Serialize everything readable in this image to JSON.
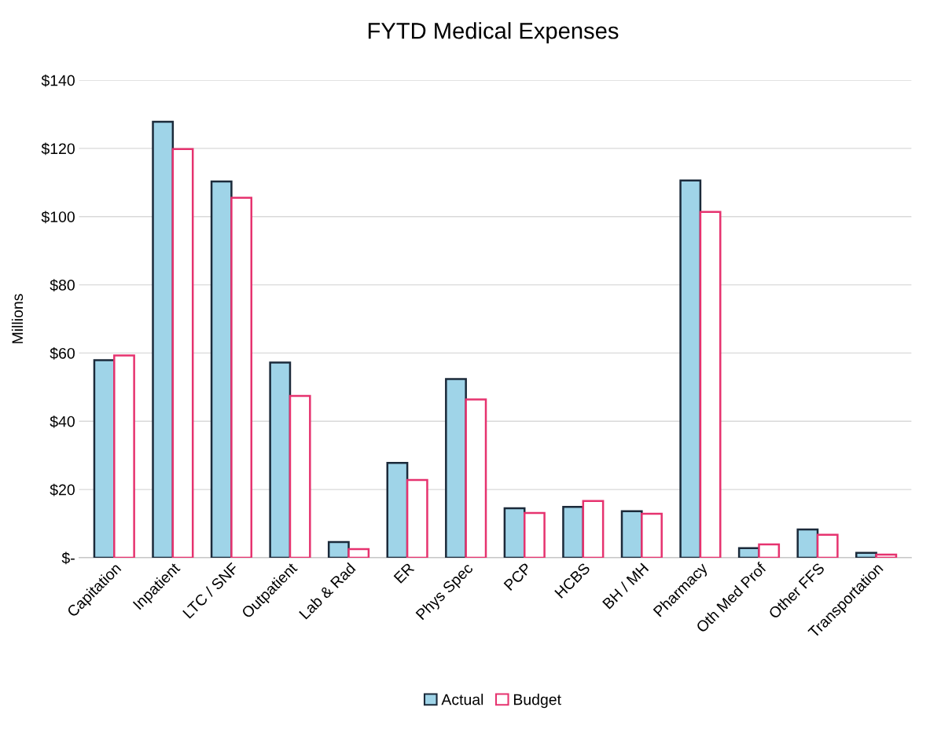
{
  "chart_data": {
    "type": "bar",
    "title": "FYTD Medical Expenses",
    "ylabel": "Millions",
    "categories": [
      "Capitation",
      "Inpatient",
      "LTC / SNF",
      "Outpatient",
      "Lab & Rad",
      "ER",
      "Phys Spec",
      "PCP",
      "HCBS",
      "BH / MH",
      "Pharmacy",
      "Oth Med Prof",
      "Other FFS",
      "Transportation"
    ],
    "series": [
      {
        "name": "Actual",
        "color": "#9fd4e8",
        "values": [
          57.9,
          127.8,
          110.3,
          57.2,
          4.6,
          27.8,
          52.4,
          14.5,
          14.9,
          13.6,
          110.6,
          2.8,
          8.3,
          1.4
        ]
      },
      {
        "name": "Budget",
        "color": "#e6336f",
        "values": [
          59.3,
          119.8,
          105.5,
          47.4,
          2.5,
          22.8,
          46.4,
          13.1,
          16.6,
          12.9,
          101.4,
          3.9,
          6.7,
          0.9
        ]
      }
    ],
    "ylim": [
      0,
      140
    ],
    "yticks": [
      {
        "value": 0,
        "label": "$-"
      },
      {
        "value": 20,
        "label": "$20"
      },
      {
        "value": 40,
        "label": "$40"
      },
      {
        "value": 60,
        "label": "$60"
      },
      {
        "value": 80,
        "label": "$80"
      },
      {
        "value": 100,
        "label": "$100"
      },
      {
        "value": 120,
        "label": "$120"
      },
      {
        "value": 140,
        "label": "$140"
      }
    ],
    "grid": "y",
    "legend": "bottom"
  }
}
